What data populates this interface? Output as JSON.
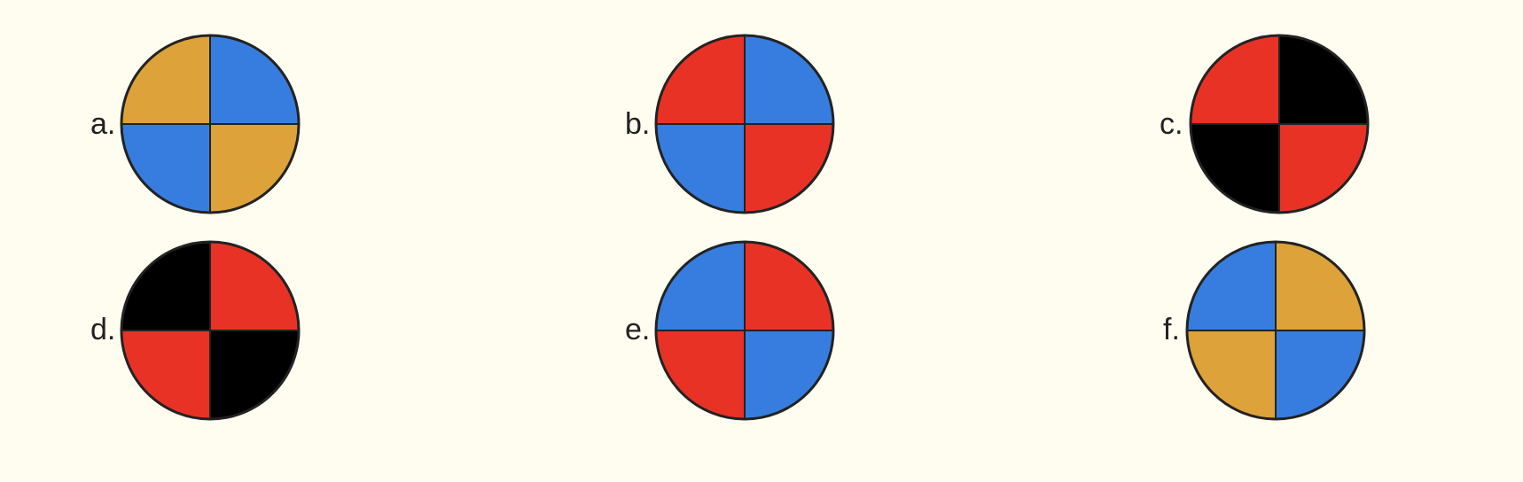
{
  "colors": {
    "background": "#fffdf0",
    "outline": "#222222",
    "gold": "#dea23a",
    "blue": "#377ddf",
    "red": "#e83226",
    "black": "#000000"
  },
  "options": [
    {
      "label": "a.",
      "quadrants": {
        "top_left": "gold",
        "top_right": "blue",
        "bottom_left": "blue",
        "bottom_right": "gold"
      }
    },
    {
      "label": "b.",
      "quadrants": {
        "top_left": "red",
        "top_right": "blue",
        "bottom_left": "blue",
        "bottom_right": "red"
      }
    },
    {
      "label": "c.",
      "quadrants": {
        "top_left": "red",
        "top_right": "black",
        "bottom_left": "black",
        "bottom_right": "red"
      }
    },
    {
      "label": "d.",
      "quadrants": {
        "top_left": "black",
        "top_right": "red",
        "bottom_left": "red",
        "bottom_right": "black"
      }
    },
    {
      "label": "e.",
      "quadrants": {
        "top_left": "blue",
        "top_right": "red",
        "bottom_left": "red",
        "bottom_right": "blue"
      }
    },
    {
      "label": "f.",
      "quadrants": {
        "top_left": "blue",
        "top_right": "gold",
        "bottom_left": "gold",
        "bottom_right": "blue"
      }
    }
  ]
}
